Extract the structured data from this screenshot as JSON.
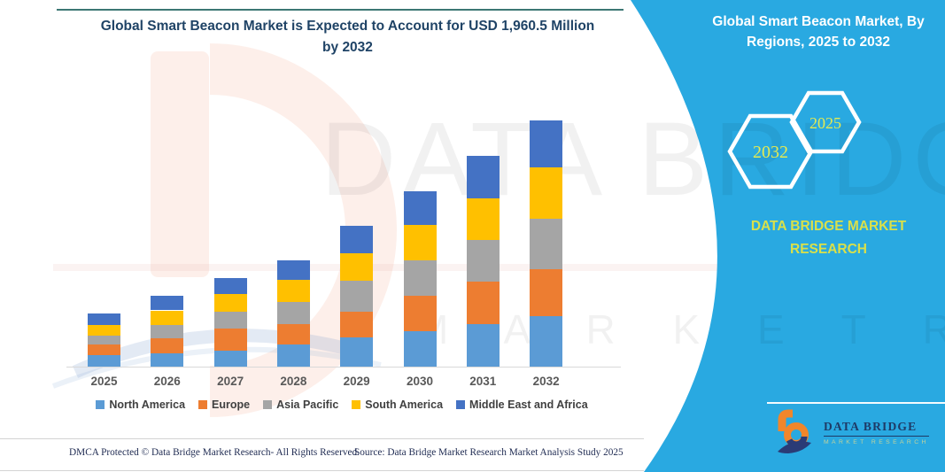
{
  "header": {
    "title_line1": "Global Smart Beacon Market is Expected to Account for USD 1,960.5 Million",
    "title_line2": "by 2032"
  },
  "band": {
    "title_line1": "Global Smart Beacon Market, By",
    "title_line2": "Regions, 2025 to 2032",
    "hex_left_year": "2032",
    "hex_right_year": "2025",
    "brand_line1": "DATA BRIDGE MARKET",
    "brand_line2": "RESEARCH",
    "logo_wordmark": "DATA BRIDGE",
    "logo_subtitle": "MARKET RESEARCH"
  },
  "watermark": {
    "big_text": "DATA BRIDGE",
    "row_text": "M A R K E T   R E S E A R C H"
  },
  "footer": {
    "left": "DMCA Protected © Data Bridge Market Research-  All Rights Reserved.",
    "source": "Source: Data Bridge Market Research  Market Analysis Study 2025"
  },
  "chart_data": {
    "type": "bar",
    "stacked": true,
    "title": "Global Smart Beacon Market is Expected to Account for USD 1,960.5 Million by 2032",
    "unit": "USD Million",
    "categories": [
      "2025",
      "2026",
      "2027",
      "2028",
      "2029",
      "2030",
      "2031",
      "2032"
    ],
    "series": [
      {
        "name": "North America",
        "color": "#5B9BD5",
        "values": [
          94,
          106,
          129,
          176,
          235,
          282,
          340,
          400
        ]
      },
      {
        "name": "Europe",
        "color": "#ED7D31",
        "values": [
          82,
          118,
          176,
          164,
          200,
          282,
          340,
          376
        ]
      },
      {
        "name": "Asia Pacific",
        "color": "#A5A5A5",
        "values": [
          71,
          106,
          129,
          176,
          247,
          282,
          330,
          400
        ]
      },
      {
        "name": "South America",
        "color": "#FFC000",
        "values": [
          82,
          118,
          141,
          176,
          223,
          282,
          330,
          411
        ]
      },
      {
        "name": "Middle East and Africa",
        "color": "#4472C4",
        "values": [
          94,
          118,
          129,
          153,
          216,
          270,
          340,
          373.5
        ]
      }
    ],
    "totals": [
      423,
      566,
      704,
      845,
      1121,
      1398,
      1680,
      1960.5
    ],
    "ylim": [
      0,
      2050
    ],
    "grid": false,
    "legend_position": "bottom"
  },
  "colors": {
    "band_cyan": "#29A9E1",
    "title_navy": "#1F4366",
    "accent_teal": "#1A5F5C",
    "hex_year_yellow": "#E4EA52",
    "brand_yellow": "#D9E04A",
    "axis_gray": "#D9D9D9",
    "year_label_gray": "#595959",
    "legend_text": "#404040",
    "footer_navy": "#1F2B52",
    "logo_navy": "#1E3A66",
    "logo_orange": "#F1862B"
  }
}
